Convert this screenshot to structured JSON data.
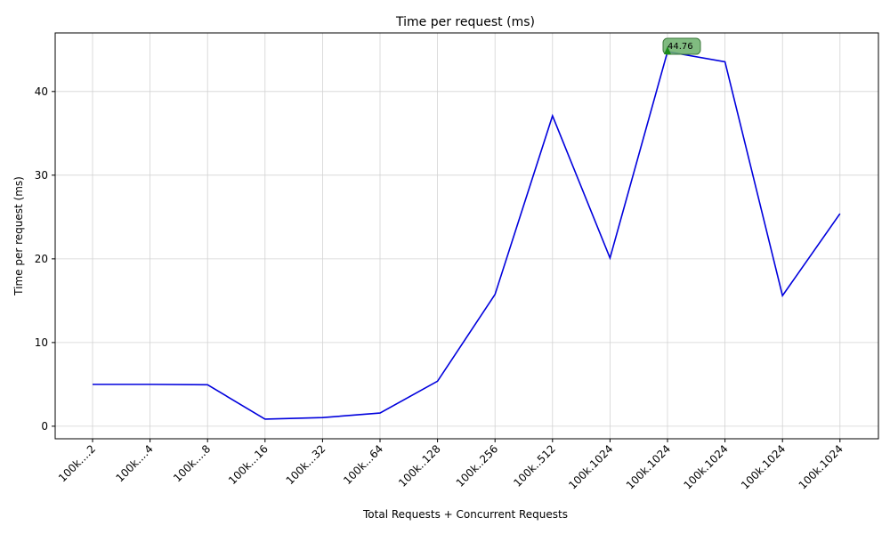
{
  "chart_data": {
    "type": "line",
    "title": "Time per request (ms)",
    "xlabel": "Total Requests + Concurrent Requests",
    "ylabel": "Time per request (ms)",
    "categories": [
      "100k....2",
      "100k....4",
      "100k....8",
      "100k...16",
      "100k...32",
      "100k...64",
      "100k..128",
      "100k..256",
      "100k..512",
      "100k.1024",
      "100k.1024",
      "100k.1024",
      "100k.1024",
      "100k.1024"
    ],
    "values": [
      5.0,
      5.0,
      4.95,
      0.85,
      1.03,
      1.58,
      5.38,
      15.75,
      37.1,
      20.1,
      44.76,
      43.55,
      15.6,
      25.4
    ],
    "yticks": [
      0,
      10,
      20,
      30,
      40
    ],
    "ylim": [
      -1.5,
      47
    ],
    "grid": true,
    "line_color": "#0000dd",
    "annotation": {
      "index": 10,
      "text": "44.76",
      "box_color": "#6aaf6a",
      "arrow_color": "#1a8a1a"
    }
  }
}
